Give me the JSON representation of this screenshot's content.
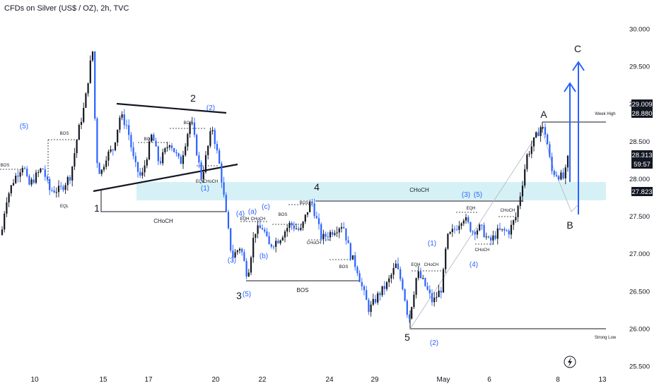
{
  "header": {
    "title": "CFDs on Silver (US$ / OZ), 2h, TVC"
  },
  "colors": {
    "up": "#131722",
    "down": "#2962ff",
    "zone": "#d6f1f6",
    "accent": "#2962ff"
  },
  "icons": {
    "replay": "lightning-icon"
  },
  "chart_data": {
    "type": "candlestick",
    "title": "CFDs on Silver (US$ / OZ), 2h, TVC",
    "ylim": [
      25.5,
      30.0
    ],
    "y_ticks": [
      "30.000",
      "29.500",
      "29.000",
      "28.500",
      "28.000",
      "27.500",
      "27.000",
      "26.500",
      "26.000",
      "25.500"
    ],
    "x_ticks": [
      "10",
      "15",
      "17",
      "20",
      "22",
      "24",
      "29",
      "May",
      "6",
      "8",
      "13",
      "15"
    ],
    "price_badges": [
      {
        "label": "29.009",
        "value": 29.009,
        "style": "dark"
      },
      {
        "label": "28.880",
        "value": 28.88,
        "style": "dark"
      },
      {
        "label": "28.313",
        "value": 28.313,
        "style": "dark"
      },
      {
        "label": "59:57",
        "value": 28.21,
        "style": "dark"
      },
      {
        "label": "27.823",
        "value": 27.823,
        "style": "dark"
      }
    ],
    "price_path": [
      {
        "x": "10",
        "y": 27.3
      },
      {
        "x": "11",
        "y": 27.8
      },
      {
        "x": "12",
        "y": 28.1
      },
      {
        "x": "12.6",
        "y": 27.95
      },
      {
        "x": "13",
        "y": 28.5
      },
      {
        "x": "14",
        "y": 29.6
      },
      {
        "x": "14.5",
        "y": 28.05
      },
      {
        "x": "15",
        "y": 28.15
      },
      {
        "x": "16",
        "y": 28.9
      },
      {
        "x": "17",
        "y": 28.0
      },
      {
        "x": "18",
        "y": 28.6
      },
      {
        "x": "19",
        "y": 28.2
      },
      {
        "x": "20",
        "y": 28.7
      },
      {
        "x": "21",
        "y": 28.0
      },
      {
        "x": "22",
        "y": 27.6
      },
      {
        "x": "23",
        "y": 26.7
      },
      {
        "x": "24",
        "y": 27.4
      },
      {
        "x": "26",
        "y": 27.0
      },
      {
        "x": "28",
        "y": 27.72
      },
      {
        "x": "29",
        "y": 27.3
      },
      {
        "x": "Apr30",
        "y": 26.6
      },
      {
        "x": "May1",
        "y": 26.25
      },
      {
        "x": "May2",
        "y": 26.6
      },
      {
        "x": "May3",
        "y": 26.07
      },
      {
        "x": "May4",
        "y": 26.6
      },
      {
        "x": "May5",
        "y": 26.3
      },
      {
        "x": "May6",
        "y": 27.1
      },
      {
        "x": "May7",
        "y": 27.35
      },
      {
        "x": "May8",
        "y": 27.2
      },
      {
        "x": "May9",
        "y": 27.5
      },
      {
        "x": "May10",
        "y": 28.7
      },
      {
        "x": "May11",
        "y": 28.2
      },
      {
        "x": "May12",
        "y": 28.1
      },
      {
        "x": "May13",
        "y": 28.31
      }
    ],
    "zone": {
      "from": 27.72,
      "to": 27.97
    },
    "levels": [
      {
        "label": "Week High",
        "value": 28.82
      },
      {
        "label": "Strong Low",
        "value": 26.04
      },
      {
        "label": "CHoCH",
        "value": 27.58
      },
      {
        "label": "CHoCH",
        "value": 27.73
      },
      {
        "label": "BOS",
        "value": 26.64
      }
    ],
    "wave_labels": {
      "major": [
        "1",
        "2",
        "3",
        "4",
        "5",
        "A",
        "B",
        "C"
      ],
      "minor": [
        "(5)",
        "(2)",
        "(1)",
        "(4)",
        "(a)",
        "(c)",
        "(b)",
        "(3)",
        "(5)",
        "(1)",
        "(3)",
        "(5)",
        "(4)",
        "(2)"
      ]
    },
    "structure_labels": [
      "BOS",
      "EQL",
      "BOS",
      "BOS",
      "EQL",
      "CHoCH",
      "EQH",
      "CHoCH",
      "BOS",
      "BOS",
      "CHoCH",
      "BOS",
      "EQH",
      "CHoCH",
      "EQH",
      "CHoCH",
      "CHoCH",
      "CHoCH"
    ]
  }
}
